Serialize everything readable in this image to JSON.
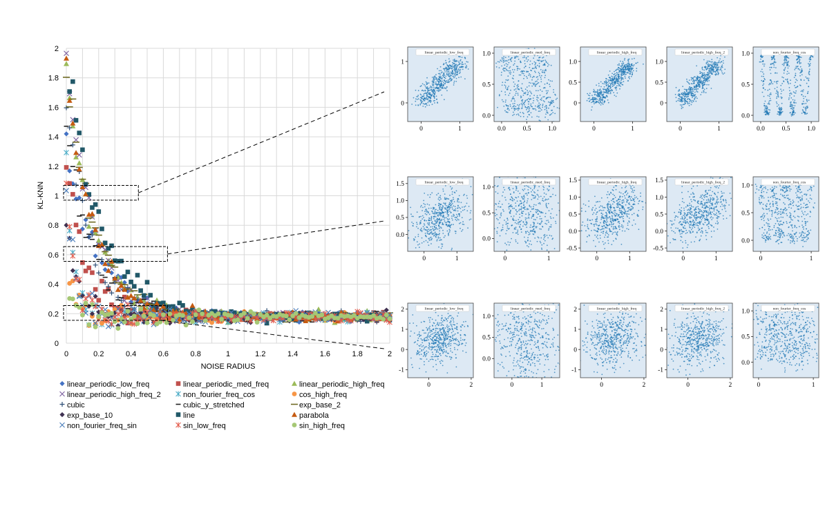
{
  "chart_data": [
    {
      "type": "scatter",
      "xlabel": "NOISE RADIUS",
      "ylabel": "KL-KNN",
      "xlim": [
        0,
        2
      ],
      "ylim": [
        0,
        2
      ],
      "xticks": [
        "0",
        "0.2",
        "0.4",
        "0.6",
        "0.8",
        "1",
        "1.2",
        "1.4",
        "1.6",
        "1.8",
        "2"
      ],
      "yticks": [
        "0",
        "0.2",
        "0.4",
        "0.6",
        "0.8",
        "1",
        "1.2",
        "1.4",
        "1.6",
        "1.8",
        "2"
      ],
      "grid": true,
      "legend_position": "bottom",
      "series": [
        {
          "name": "linear_periodic_low_freq",
          "marker": "diamond",
          "color": "#4472c4",
          "start": 1.35,
          "decay": 5.0
        },
        {
          "name": "linear_periodic_med_freq",
          "marker": "square",
          "color": "#c0504d",
          "start": 1.3,
          "decay": 9.0
        },
        {
          "name": "linear_periodic_high_freq",
          "marker": "triangle",
          "color": "#9bbb59",
          "start": 1.86,
          "decay": 6.0
        },
        {
          "name": "linear_periodic_high_freq_2",
          "marker": "x",
          "color": "#8064a2",
          "start": 1.92,
          "decay": 6.0
        },
        {
          "name": "non_fourier_freq_cos",
          "marker": "asterisk",
          "color": "#4bacc6",
          "start": 1.16,
          "decay": 20.0
        },
        {
          "name": "cos_high_freq",
          "marker": "circle",
          "color": "#f79646",
          "start": 0.72,
          "decay": 25.0
        },
        {
          "name": "cubic",
          "marker": "plus",
          "color": "#2c4d75",
          "start": 1.65,
          "decay": 7.0
        },
        {
          "name": "cubic_y_stretched",
          "marker": "dash",
          "color": "#1f1f1f",
          "start": 1.45,
          "decay": 6.0
        },
        {
          "name": "exp_base_2",
          "marker": "longdash",
          "color": "#6f6a22",
          "start": 1.9,
          "decay": 6.0
        },
        {
          "name": "exp_base_10",
          "marker": "diamond",
          "color": "#3f3151",
          "start": 0.86,
          "decay": 14.0
        },
        {
          "name": "line",
          "marker": "square",
          "color": "#215868",
          "start": 1.98,
          "decay": 5.0
        },
        {
          "name": "parabola",
          "marker": "triangle",
          "color": "#c55a11",
          "start": 1.82,
          "decay": 6.0
        },
        {
          "name": "non_fourier_freq_sin",
          "marker": "x",
          "color": "#4f81bd",
          "start": 1.02,
          "decay": 18.0
        },
        {
          "name": "sin_low_freq",
          "marker": "asterisk",
          "color": "#e35b4b",
          "start": 1.0,
          "decay": 18.0
        },
        {
          "name": "sin_high_freq",
          "marker": "circle",
          "color": "#a6c875",
          "start": 0.5,
          "decay": 25.0
        }
      ],
      "floor": 0.18,
      "highlight_regions": [
        {
          "x": [
            0.0,
            0.42
          ],
          "y": [
            0.97,
            1.07
          ]
        },
        {
          "x": [
            0.0,
            0.6
          ],
          "y": [
            0.555,
            0.655
          ]
        },
        {
          "x": [
            0.0,
            0.6
          ],
          "y": [
            0.155,
            0.255
          ]
        }
      ]
    },
    {
      "type": "scatter",
      "grid_of_subplots": true,
      "rows": [
        {
          "panels": [
            {
              "title": "linear_periodic_low_freq",
              "pattern": "linear",
              "noise": 0.12,
              "xlim": [
                -0.35,
                1.35
              ],
              "ylim": [
                -0.45,
                1.35
              ],
              "xticks": [
                "0",
                "1"
              ],
              "yticks": [
                "0",
                "1"
              ]
            },
            {
              "title": "linear_periodic_med_freq",
              "pattern": "periodic",
              "noise": 0.08,
              "xlim": [
                -0.15,
                1.15
              ],
              "ylim": [
                -0.1,
                1.1
              ],
              "xticks": [
                "0.0",
                "0.5",
                "1.0"
              ],
              "yticks": [
                "0.0",
                "0.5",
                "1.0"
              ]
            },
            {
              "title": "linear_periodic_high_freq",
              "pattern": "linear",
              "noise": 0.1,
              "xlim": [
                -0.35,
                1.35
              ],
              "ylim": [
                -0.45,
                1.35
              ],
              "xticks": [
                "0",
                "1"
              ],
              "yticks": [
                "0",
                "0.5",
                "1.0"
              ]
            },
            {
              "title": "linear_periodic_high_freq_2",
              "pattern": "linear",
              "noise": 0.1,
              "xlim": [
                -0.35,
                1.35
              ],
              "ylim": [
                -0.45,
                1.35
              ],
              "xticks": [
                "0",
                "1"
              ],
              "yticks": [
                "0",
                "0.5",
                "1.0"
              ]
            },
            {
              "title": "non_fourier_freq_cos",
              "pattern": "zigzag",
              "noise": 0.02,
              "xlim": [
                -0.15,
                1.15
              ],
              "ylim": [
                -0.1,
                1.1
              ],
              "xticks": [
                "0.0",
                "0.5",
                "1.0"
              ],
              "yticks": [
                "0.0",
                "0.5",
                "1.0"
              ]
            }
          ]
        },
        {
          "panels": [
            {
              "title": "linear_periodic_low_freq",
              "pattern": "linear",
              "noise": 0.3,
              "xlim": [
                -0.5,
                1.5
              ],
              "ylim": [
                -0.5,
                1.7
              ],
              "xticks": [
                "0",
                "1"
              ],
              "yticks": [
                "0.0",
                "0.5",
                "1.0",
                "1.5"
              ]
            },
            {
              "title": "linear_periodic_med_freq",
              "pattern": "periodic",
              "noise": 0.25,
              "xlim": [
                -0.25,
                1.25
              ],
              "ylim": [
                -0.25,
                1.2
              ],
              "xticks": [
                "0",
                "1"
              ],
              "yticks": [
                "0.0",
                "0.5",
                "1.0"
              ]
            },
            {
              "title": "linear_periodic_high_freq",
              "pattern": "linear",
              "noise": 0.3,
              "xlim": [
                -0.5,
                1.5
              ],
              "ylim": [
                -0.6,
                1.6
              ],
              "xticks": [
                "0",
                "1"
              ],
              "yticks": [
                "-0.5",
                "0.0",
                "0.5",
                "1.0",
                "1.5"
              ]
            },
            {
              "title": "linear_periodic_high_freq_2",
              "pattern": "linear",
              "noise": 0.3,
              "xlim": [
                -0.5,
                1.5
              ],
              "ylim": [
                -0.6,
                1.6
              ],
              "xticks": [
                "0",
                "1"
              ],
              "yticks": [
                "-0.5",
                "0.0",
                "0.5",
                "1.0",
                "1.5"
              ]
            },
            {
              "title": "non_fourier_freq_cos",
              "pattern": "zigzag",
              "noise": 0.05,
              "xlim": [
                -0.15,
                1.15
              ],
              "ylim": [
                -0.2,
                1.15
              ],
              "xticks": [
                "0",
                "1"
              ],
              "yticks": [
                "0.0",
                "0.5",
                "1.0"
              ]
            }
          ]
        },
        {
          "panels": [
            {
              "title": "linear_periodic_low_freq",
              "pattern": "linear",
              "noise": 0.55,
              "xlim": [
                -1.0,
                2.1
              ],
              "ylim": [
                -1.4,
                2.3
              ],
              "xticks": [
                "0",
                "2"
              ],
              "yticks": [
                "-1",
                "0",
                "1",
                "2"
              ]
            },
            {
              "title": "linear_periodic_med_freq",
              "pattern": "periodic",
              "noise": 0.45,
              "xlim": [
                -0.6,
                1.6
              ],
              "ylim": [
                -0.45,
                1.3
              ],
              "xticks": [
                "0",
                "1"
              ],
              "yticks": [
                "0.0",
                "0.5",
                "1.0"
              ]
            },
            {
              "title": "linear_periodic_high_freq",
              "pattern": "linear",
              "noise": 0.6,
              "xlim": [
                -1.0,
                2.1
              ],
              "ylim": [
                -1.4,
                2.3
              ],
              "xticks": [
                "0",
                "2"
              ],
              "yticks": [
                "-1",
                "0",
                "1",
                "2"
              ]
            },
            {
              "title": "linear_periodic_high_freq_2",
              "pattern": "linear",
              "noise": 0.6,
              "xlim": [
                -1.0,
                2.1
              ],
              "ylim": [
                -1.4,
                2.3
              ],
              "xticks": [
                "0",
                "2"
              ],
              "yticks": [
                "-1",
                "0",
                "1",
                "2"
              ]
            },
            {
              "title": "non_fourier_freq_cos",
              "pattern": "uniform",
              "noise": 0.1,
              "xlim": [
                -0.1,
                1.1
              ],
              "ylim": [
                -0.3,
                1.15
              ],
              "xticks": [
                "0",
                "1"
              ],
              "yticks": [
                "0.0",
                "0.5",
                "1.0"
              ]
            }
          ]
        }
      ]
    }
  ],
  "colors": {
    "grid": "#d9d9d9",
    "panel_bg": "#dde9f4",
    "point": "#1f77b4"
  }
}
